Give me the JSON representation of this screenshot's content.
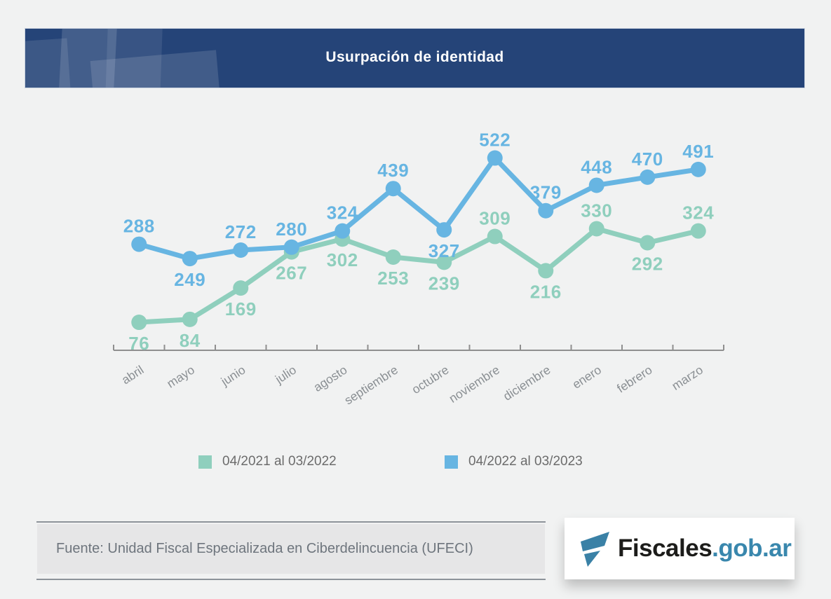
{
  "header": {
    "title": "Usurpación de identidad"
  },
  "chart_data": {
    "type": "line",
    "title": "Usurpación de identidad",
    "categories": [
      "abril",
      "mayo",
      "junio",
      "julio",
      "agosto",
      "septiembre",
      "octubre",
      "noviembre",
      "diciembre",
      "enero",
      "febrero",
      "marzo"
    ],
    "series": [
      {
        "name": "04/2021 al 03/2022",
        "color": "#8fcfbd",
        "values": [
          76,
          84,
          169,
          267,
          302,
          253,
          239,
          309,
          216,
          330,
          292,
          324
        ],
        "label_positions": [
          "below",
          "below",
          "below",
          "below",
          "below",
          "below",
          "below",
          "above",
          "below",
          "above",
          "below",
          "above"
        ]
      },
      {
        "name": "04/2022 al 03/2023",
        "color": "#67b5e2",
        "values": [
          288,
          249,
          272,
          280,
          324,
          439,
          327,
          522,
          379,
          448,
          470,
          491
        ],
        "label_positions": [
          "above",
          "below",
          "above",
          "above",
          "above",
          "above",
          "below",
          "above",
          "above",
          "above",
          "above",
          "above"
        ]
      }
    ],
    "xlabel": "",
    "ylabel": "",
    "ylim": [
      0,
      660
    ],
    "grid": false,
    "legend_position": "bottom",
    "axis_color": "#8f8f8f",
    "tick_label_color": "#8a8f93"
  },
  "footer": {
    "source": "Fuente: Unidad Fiscal Especializada en Ciberdelincuencia (UFECI)"
  },
  "logo": {
    "name": "Fiscales.gob.ar",
    "text_black": "Fiscales",
    "text_blue": ".gob.ar"
  }
}
